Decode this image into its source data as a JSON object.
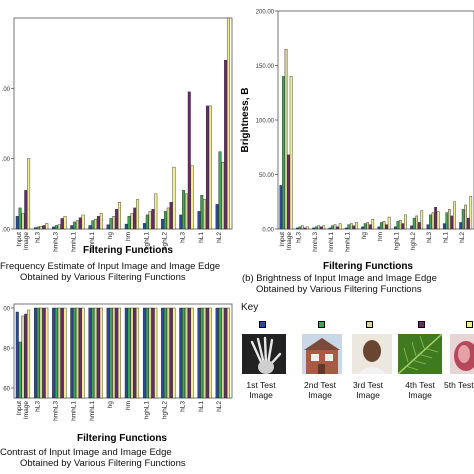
{
  "chart_data": [
    {
      "id": "a",
      "type": "bar",
      "title": "",
      "xlabel": "Filtering Functions",
      "ylabel": "",
      "ylim": [
        0,
        300
      ],
      "tick_labels": [
        ".00",
        ".00",
        ".00"
      ],
      "tick_values": [
        0,
        100,
        200
      ],
      "categories": [
        "Input Image",
        "hL3",
        "hmhL3",
        "hmhL1",
        "hmhL1",
        "hg",
        "hm",
        "hghL1",
        "hghL2",
        "hL3",
        "hL1",
        "hL2"
      ],
      "series": [
        {
          "values": [
            18,
            2,
            3,
            5,
            5,
            6,
            7,
            8,
            14,
            20,
            25,
            35
          ]
        },
        {
          "values": [
            30,
            3,
            5,
            10,
            12,
            15,
            18,
            20,
            25,
            55,
            48,
            110
          ]
        },
        {
          "values": [
            22,
            4,
            6,
            12,
            14,
            18,
            22,
            25,
            30,
            50,
            42,
            95
          ]
        },
        {
          "values": [
            55,
            5,
            15,
            16,
            18,
            28,
            30,
            28,
            38,
            195,
            175,
            240
          ]
        },
        {
          "values": [
            100,
            8,
            18,
            20,
            22,
            38,
            42,
            50,
            88,
            90,
            175,
            310
          ]
        }
      ]
    },
    {
      "id": "b",
      "type": "bar",
      "title": "",
      "xlabel": "Filtering Functions",
      "ylabel": "Brightness, B",
      "ylim": [
        0,
        200
      ],
      "tick_labels": [
        "0.00",
        "50.00",
        "100.00",
        "150.00",
        "200.00"
      ],
      "tick_values": [
        0,
        50,
        100,
        150,
        200
      ],
      "categories": [
        "Input Image",
        "hL3",
        "hmhL3",
        "hmhL1",
        "hmhL1",
        "hg",
        "hm",
        "hghL1",
        "hghL2",
        "hL3",
        "hL1",
        "hL2"
      ],
      "series": [
        {
          "values": [
            40,
            1,
            1,
            1,
            1,
            2,
            2,
            2,
            3,
            4,
            5,
            6
          ]
        },
        {
          "values": [
            140,
            2,
            2,
            3,
            4,
            5,
            6,
            7,
            10,
            13,
            15,
            18
          ]
        },
        {
          "values": [
            165,
            3,
            3,
            4,
            5,
            6,
            7,
            8,
            12,
            15,
            18,
            22
          ]
        },
        {
          "values": [
            68,
            1,
            2,
            2,
            3,
            4,
            4,
            5,
            6,
            20,
            12,
            10
          ]
        },
        {
          "values": [
            140,
            2,
            3,
            5,
            6,
            9,
            11,
            13,
            17,
            16,
            25,
            30
          ]
        }
      ]
    },
    {
      "id": "c",
      "type": "bar",
      "title": "",
      "xlabel": "Filtering Functions",
      "ylabel": "",
      "ylim": [
        0.9,
        1.02
      ],
      "tick_labels": [
        "00",
        "80",
        "60"
      ],
      "tick_values": [
        1.0,
        0.98,
        0.96
      ],
      "categories": [
        "Input Image",
        "hL3",
        "hmhL3",
        "hmhL1",
        "hmhL1",
        "hg",
        "hm",
        "hghL1",
        "hghL2",
        "hL3",
        "hL1",
        "hL2"
      ],
      "series": [
        {
          "values": [
            0.998,
            1,
            1,
            1,
            1,
            1,
            1,
            1,
            1,
            1,
            1,
            1
          ]
        },
        {
          "values": [
            0.983,
            1,
            1,
            1,
            1,
            1,
            1,
            1,
            1,
            1,
            1,
            1
          ]
        },
        {
          "values": [
            0.996,
            1,
            1,
            1,
            1,
            1,
            1,
            1,
            1,
            1,
            1,
            1
          ]
        },
        {
          "values": [
            0.997,
            1,
            1,
            1,
            1,
            1,
            1,
            1,
            1,
            1,
            1,
            1
          ]
        },
        {
          "values": [
            0.999,
            1,
            1,
            1,
            1,
            1,
            1,
            1,
            1,
            1,
            1,
            1
          ]
        }
      ]
    }
  ],
  "captions": {
    "a": [
      "Frequency Estimate of Input Image and Image Edge",
      "Obtained by Various Filtering Functions"
    ],
    "b": [
      "(b) Brightness of Input Image and Image Edge",
      "Obtained by Various Filtering Functions"
    ],
    "c": [
      "Contrast of Input Image and Image Edge",
      "Obtained by Various Filtering Functions"
    ]
  },
  "key": {
    "title": "Key",
    "items": [
      {
        "label": "1st Test Image",
        "color": "#2b4a9a",
        "icon": "xray-hand-image"
      },
      {
        "label": "2nd Test Image",
        "color": "#3aa84f",
        "icon": "brick-house-image"
      },
      {
        "label": "3rd Test Image",
        "color": "#d9d59a",
        "icon": "portrait-image"
      },
      {
        "label": "4th Test Image",
        "color": "#6b2a6e",
        "icon": "leaf-image"
      },
      {
        "label": "5th Test Image",
        "color": "#f3f08c",
        "icon": "fruit-image"
      }
    ]
  },
  "colors": [
    "#2b4a9a",
    "#3aa84f",
    "#d9d59a",
    "#6b2a6e",
    "#f3f08c"
  ]
}
